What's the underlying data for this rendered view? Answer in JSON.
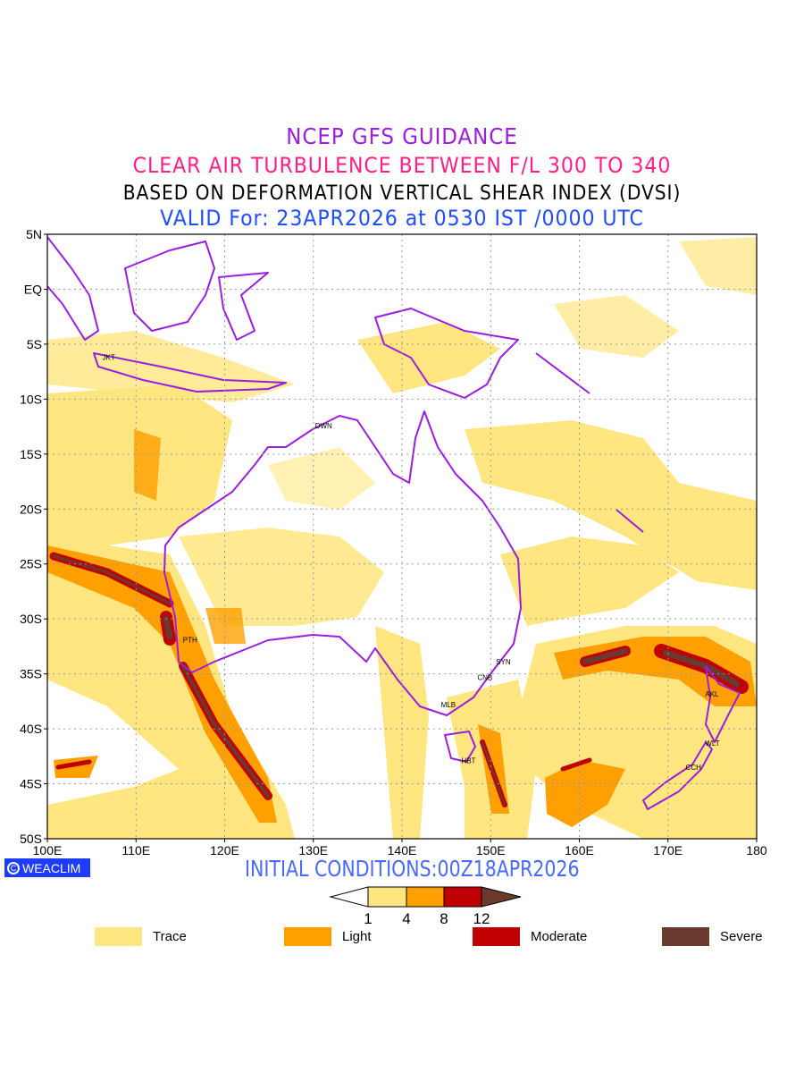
{
  "title": {
    "line1": "NCEP GFS GUIDANCE",
    "line2": "CLEAR AIR TURBULENCE BETWEEN F/L 300 TO 340",
    "line3": "BASED ON DEFORMATION VERTICAL SHEAR INDEX (DVSI)",
    "line4": "VALID For: 23APR2026 at 0530 IST /0000 UTC"
  },
  "axes": {
    "lat_labels": [
      "5N",
      "EQ",
      "5S",
      "10S",
      "15S",
      "20S",
      "25S",
      "30S",
      "35S",
      "40S",
      "45S",
      "50S"
    ],
    "lon_labels": [
      "100E",
      "110E",
      "120E",
      "130E",
      "140E",
      "150E",
      "160E",
      "170E",
      "180"
    ]
  },
  "cities": [
    {
      "code": "JKT",
      "lon": 106.8,
      "lat": -6.2
    },
    {
      "code": "DWN",
      "lon": 130.8,
      "lat": -12.4
    },
    {
      "code": "PTH",
      "lon": 115.9,
      "lat": -31.9
    },
    {
      "code": "SYN",
      "lon": 151.2,
      "lat": -33.9
    },
    {
      "code": "CNB",
      "lon": 149.1,
      "lat": -35.3
    },
    {
      "code": "MLB",
      "lon": 145.0,
      "lat": -37.8
    },
    {
      "code": "HBT",
      "lon": 147.3,
      "lat": -42.9
    },
    {
      "code": "AKL",
      "lon": 174.8,
      "lat": -36.8
    },
    {
      "code": "WLT",
      "lon": 174.8,
      "lat": -41.3
    },
    {
      "code": "CCH",
      "lon": 172.6,
      "lat": -43.5
    }
  ],
  "badge": "WEACLIM",
  "initial_conditions": "INITIAL CONDITIONS:00Z18APR2026",
  "colorbar": {
    "ticks": [
      "1",
      "4",
      "8",
      "12"
    ],
    "colors": [
      "#ffe680",
      "#ffa000",
      "#c00000",
      "#6b3a2e"
    ]
  },
  "legend": [
    {
      "label": "Trace",
      "color": "#ffe680"
    },
    {
      "label": "Light",
      "color": "#ffa000"
    },
    {
      "label": "Moderate",
      "color": "#c00000"
    },
    {
      "label": "Severe",
      "color": "#6b3a2e"
    }
  ],
  "colors": {
    "coast": "#9a1ee0",
    "trace": "#ffe680",
    "light": "#ffa000",
    "moderate": "#c00000",
    "severe": "#6b3a2e"
  }
}
